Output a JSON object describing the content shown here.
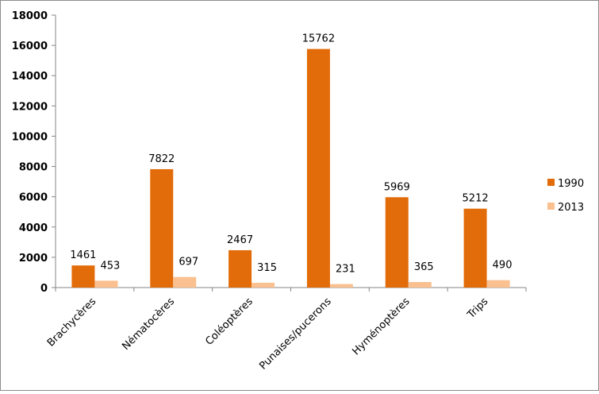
{
  "chart_data": {
    "type": "bar",
    "title": "",
    "xlabel": "",
    "ylabel": "",
    "ylim": [
      0,
      18000
    ],
    "yticks": [
      0,
      2000,
      4000,
      6000,
      8000,
      10000,
      12000,
      14000,
      16000,
      18000
    ],
    "grid": false,
    "legend_position": "right",
    "categories": [
      "Brachycères",
      "Nématocères",
      "Coléoptères",
      "Punaises/pucerons",
      "Hyménoptères",
      "Trips"
    ],
    "series": [
      {
        "name": "1990",
        "color": "#e36c0a",
        "values": [
          1461,
          7822,
          2467,
          15762,
          5969,
          5212
        ]
      },
      {
        "name": "2013",
        "color": "#fac08f",
        "values": [
          453,
          697,
          315,
          231,
          365,
          490
        ]
      }
    ]
  }
}
